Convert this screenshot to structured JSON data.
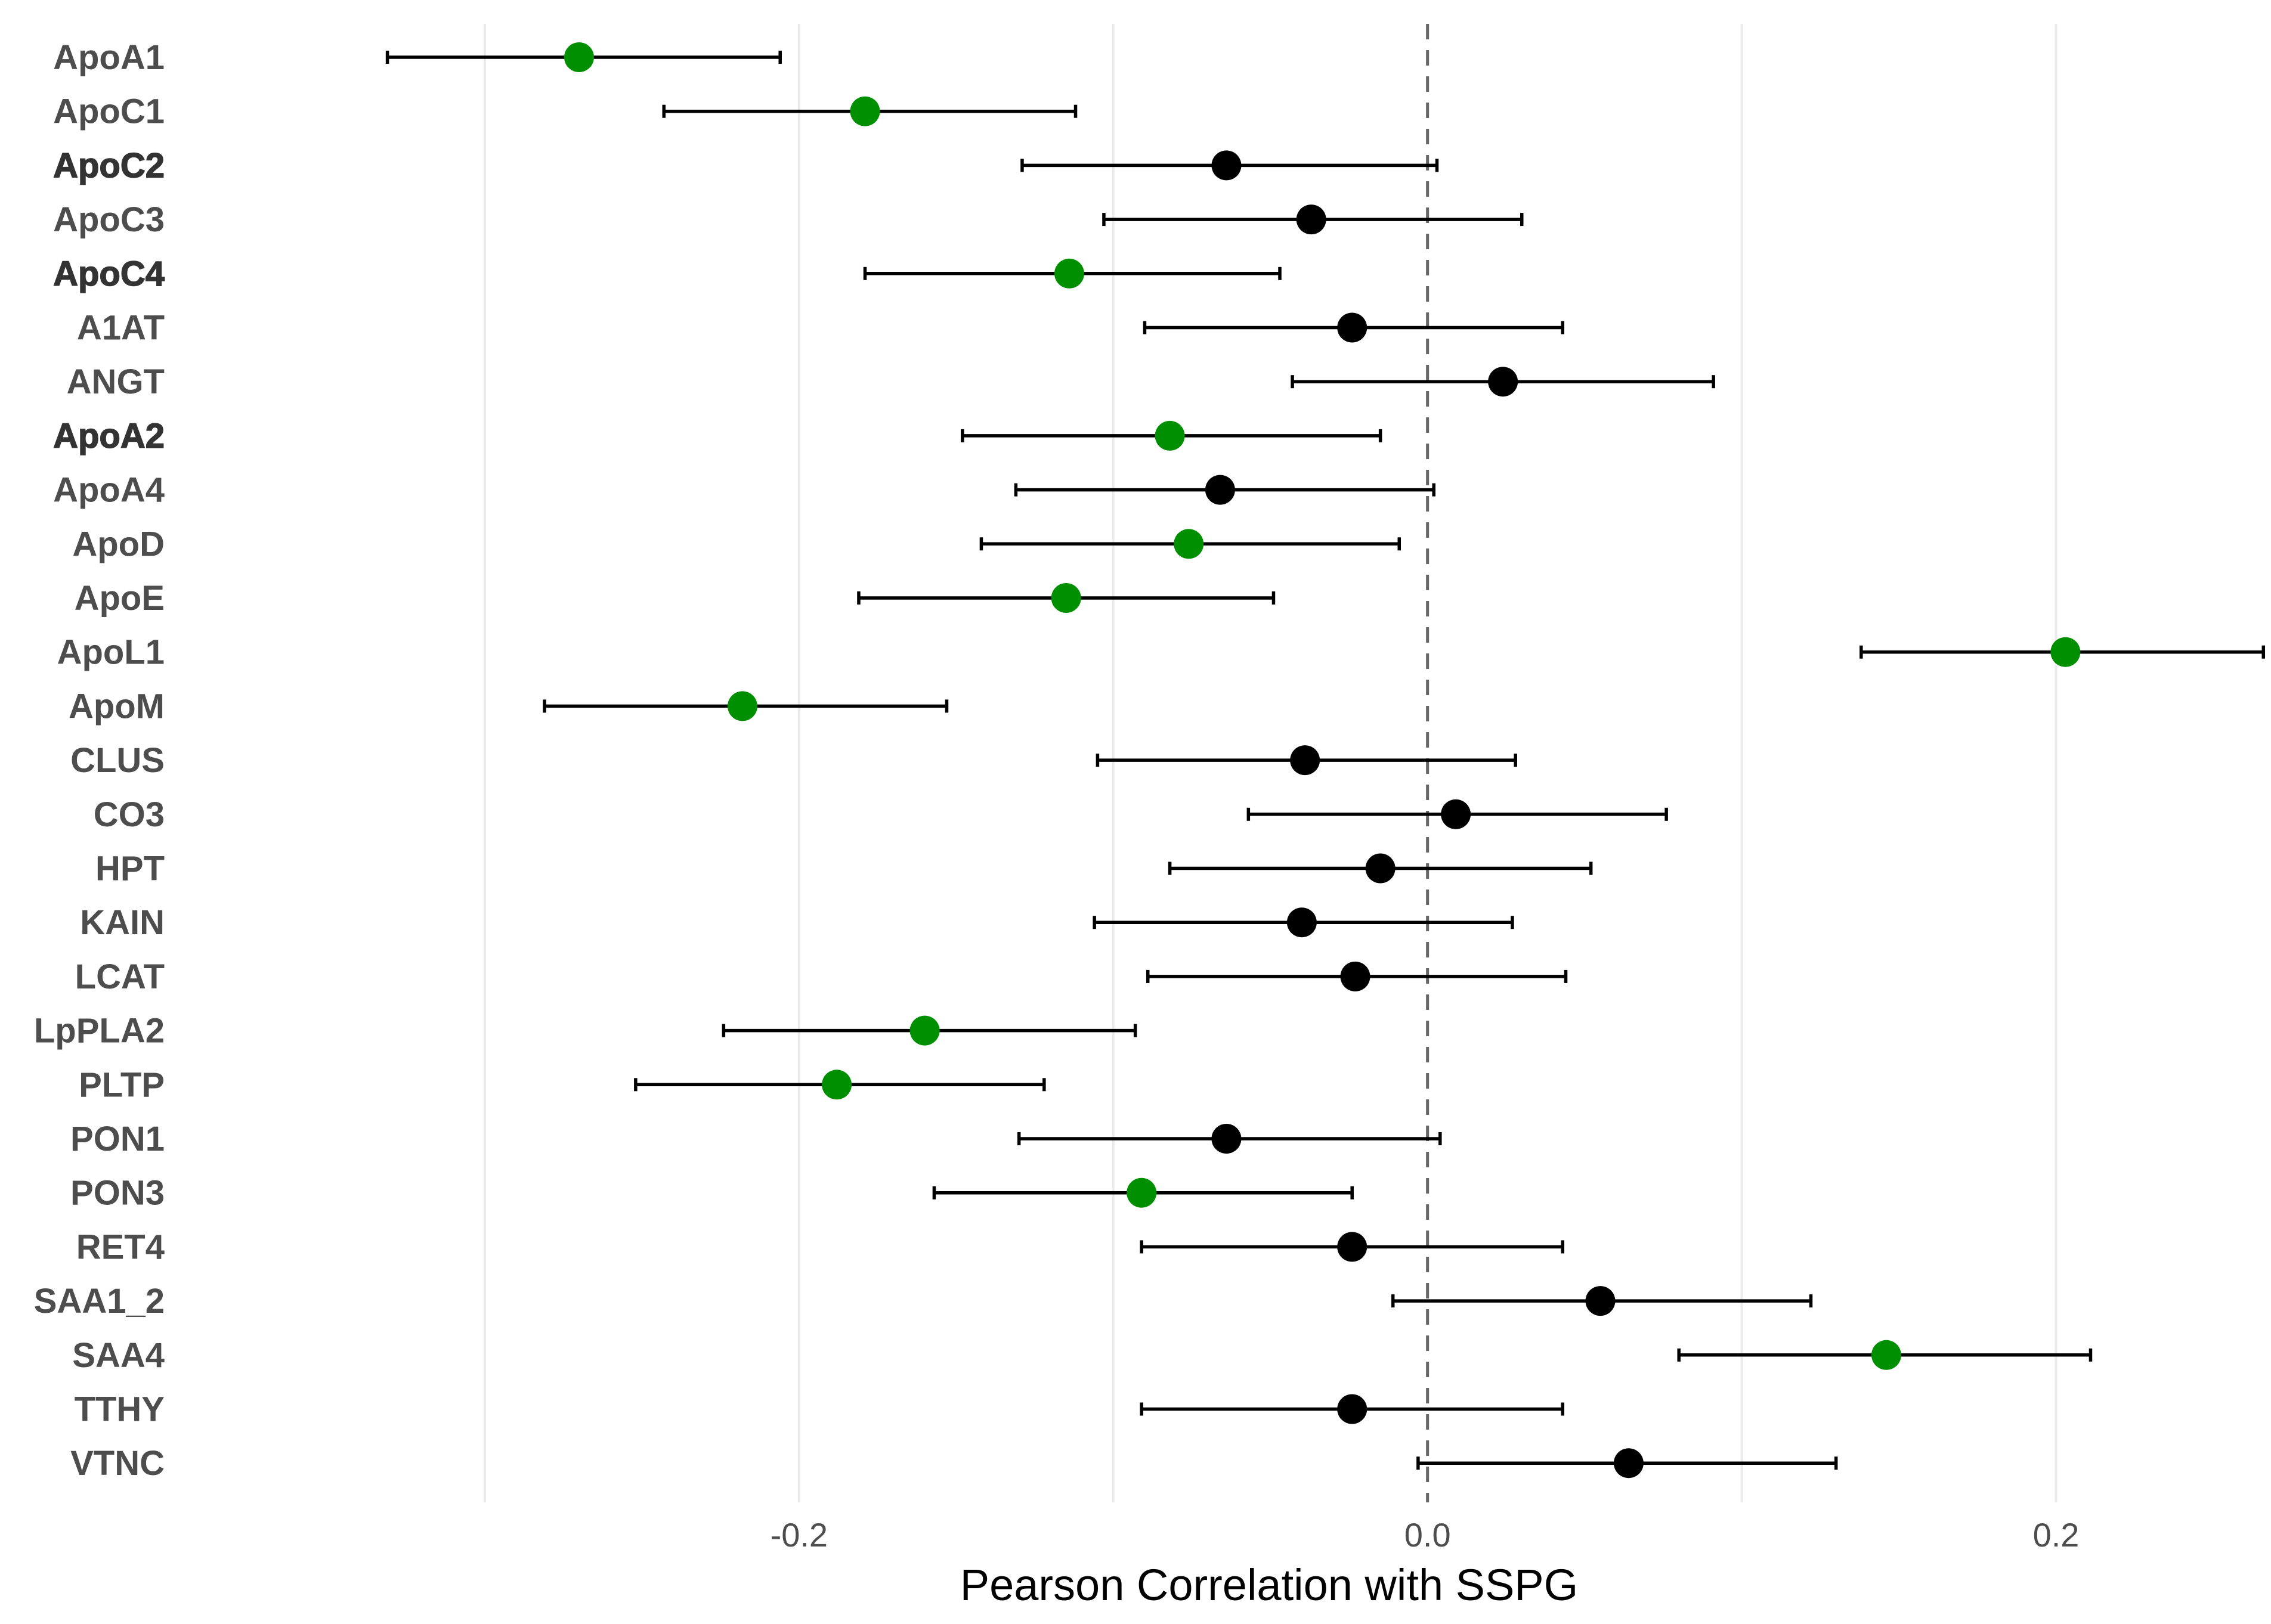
{
  "chart_data": {
    "type": "forest-plot",
    "xlabel": "Pearson Correlation with SSPG",
    "xlim": [
      -0.4,
      0.265
    ],
    "xticks": [
      -0.2,
      0.0,
      0.2
    ],
    "xtick_labels": [
      "-0.2",
      "0.0",
      "0.2"
    ],
    "minor_gridlines": [
      -0.3,
      -0.1,
      0.1
    ],
    "reference_line": 0.0,
    "colors": {
      "significant": "#008f00",
      "not_significant": "#000000"
    },
    "rows": [
      {
        "label": "ApoA1",
        "r": -0.27,
        "low": -0.331,
        "high": -0.206,
        "significant": true,
        "bold": false
      },
      {
        "label": "ApoC1",
        "r": -0.179,
        "low": -0.243,
        "high": -0.112,
        "significant": true,
        "bold": false
      },
      {
        "label": "ApoC2",
        "r": -0.064,
        "low": -0.129,
        "high": 0.003,
        "significant": false,
        "bold": true
      },
      {
        "label": "ApoC3",
        "r": -0.037,
        "low": -0.103,
        "high": 0.03,
        "significant": false,
        "bold": false
      },
      {
        "label": "ApoC4",
        "r": -0.114,
        "low": -0.179,
        "high": -0.047,
        "significant": true,
        "bold": true
      },
      {
        "label": "A1AT",
        "r": -0.024,
        "low": -0.09,
        "high": 0.043,
        "significant": false,
        "bold": false
      },
      {
        "label": "ANGT",
        "r": 0.024,
        "low": -0.043,
        "high": 0.091,
        "significant": false,
        "bold": false
      },
      {
        "label": "ApoA2",
        "r": -0.082,
        "low": -0.148,
        "high": -0.015,
        "significant": true,
        "bold": true
      },
      {
        "label": "ApoA4",
        "r": -0.066,
        "low": -0.131,
        "high": 0.002,
        "significant": false,
        "bold": false
      },
      {
        "label": "ApoD",
        "r": -0.076,
        "low": -0.142,
        "high": -0.009,
        "significant": true,
        "bold": false
      },
      {
        "label": "ApoE",
        "r": -0.115,
        "low": -0.181,
        "high": -0.049,
        "significant": true,
        "bold": false
      },
      {
        "label": "ApoL1",
        "r": 0.203,
        "low": 0.138,
        "high": 0.266,
        "significant": true,
        "bold": false
      },
      {
        "label": "ApoM",
        "r": -0.218,
        "low": -0.281,
        "high": -0.153,
        "significant": true,
        "bold": false
      },
      {
        "label": "CLUS",
        "r": -0.039,
        "low": -0.105,
        "high": 0.028,
        "significant": false,
        "bold": false
      },
      {
        "label": "CO3",
        "r": 0.009,
        "low": -0.057,
        "high": 0.076,
        "significant": false,
        "bold": false
      },
      {
        "label": "HPT",
        "r": -0.015,
        "low": -0.082,
        "high": 0.052,
        "significant": false,
        "bold": false
      },
      {
        "label": "KAIN",
        "r": -0.04,
        "low": -0.106,
        "high": 0.027,
        "significant": false,
        "bold": false
      },
      {
        "label": "LCAT",
        "r": -0.023,
        "low": -0.089,
        "high": 0.044,
        "significant": false,
        "bold": false
      },
      {
        "label": "LpPLA2",
        "r": -0.16,
        "low": -0.224,
        "high": -0.093,
        "significant": true,
        "bold": false
      },
      {
        "label": "PLTP",
        "r": -0.188,
        "low": -0.252,
        "high": -0.122,
        "significant": true,
        "bold": false
      },
      {
        "label": "PON1",
        "r": -0.064,
        "low": -0.13,
        "high": 0.004,
        "significant": false,
        "bold": false
      },
      {
        "label": "PON3",
        "r": -0.091,
        "low": -0.157,
        "high": -0.024,
        "significant": true,
        "bold": false
      },
      {
        "label": "RET4",
        "r": -0.024,
        "low": -0.091,
        "high": 0.043,
        "significant": false,
        "bold": false
      },
      {
        "label": "SAA1_2",
        "r": 0.055,
        "low": -0.011,
        "high": 0.122,
        "significant": false,
        "bold": false
      },
      {
        "label": "SAA4",
        "r": 0.146,
        "low": 0.08,
        "high": 0.211,
        "significant": true,
        "bold": false
      },
      {
        "label": "TTHY",
        "r": -0.024,
        "low": -0.091,
        "high": 0.043,
        "significant": false,
        "bold": false
      },
      {
        "label": "VTNC",
        "r": 0.064,
        "low": -0.003,
        "high": 0.13,
        "significant": false,
        "bold": false
      }
    ]
  }
}
